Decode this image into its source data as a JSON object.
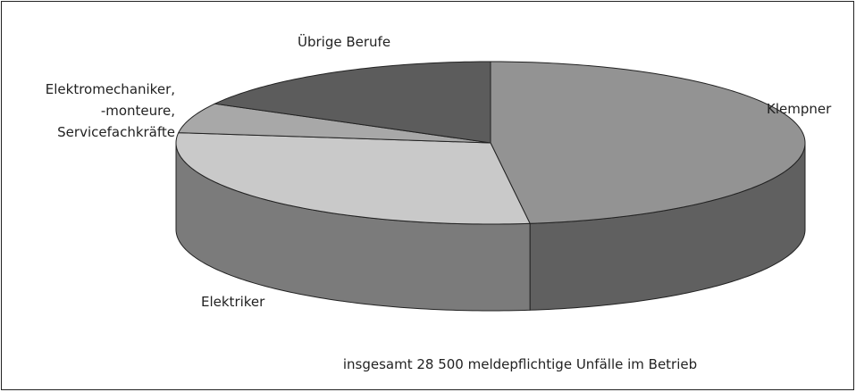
{
  "chart_data": {
    "type": "pie3d",
    "categories": [
      "Klempner",
      "Elektriker",
      "Elektromechaniker,\n-monteure,\nServicefachkräfte",
      "Übrige Berufe"
    ],
    "values": [
      48,
      29,
      6,
      17
    ],
    "colors": [
      "#939393",
      "#c9c9c9",
      "#a8a8a8",
      "#5c5c5c"
    ],
    "side_colors": [
      "#606060",
      "#7b7b7b",
      "#6e6e6e",
      "#4a4a4a"
    ],
    "annotation": "insgesamt 28 500 meldepflichtige Unfälle im Betrieb"
  }
}
